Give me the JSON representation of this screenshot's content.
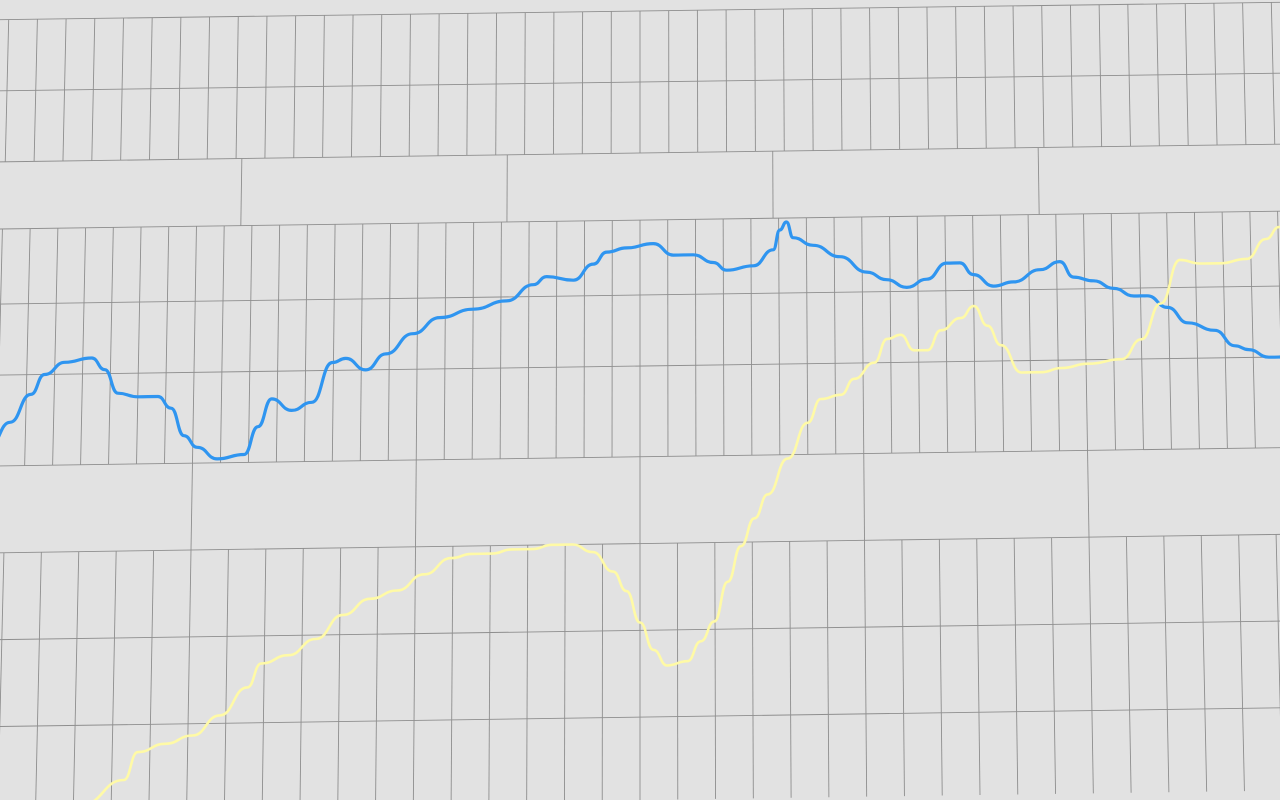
{
  "chart_data": {
    "type": "line",
    "title": "",
    "xlabel": "",
    "ylabel": "",
    "grid": true,
    "legend": "none",
    "background": "#e2e2e2",
    "grid_color": "#8e8e8e",
    "x_range": [
      0,
      100
    ],
    "y_range": [
      0,
      100
    ],
    "series": [
      {
        "color": "#2f95f0",
        "points": [
          [
            0,
            47
          ],
          [
            1.5,
            46
          ],
          [
            3,
            49
          ],
          [
            4.5,
            52.5
          ],
          [
            5.5,
            55
          ],
          [
            7,
            56.5
          ],
          [
            9,
            57
          ],
          [
            10,
            55.5
          ],
          [
            11,
            52.5
          ],
          [
            12.5,
            52
          ],
          [
            14,
            52
          ],
          [
            15,
            50.5
          ],
          [
            16,
            47
          ],
          [
            17,
            45.5
          ],
          [
            18.5,
            44
          ],
          [
            20.5,
            44.5
          ],
          [
            21.5,
            48
          ],
          [
            22.5,
            51.5
          ],
          [
            24,
            50
          ],
          [
            25.5,
            51
          ],
          [
            27,
            56
          ],
          [
            28,
            56.5
          ],
          [
            29.5,
            55
          ],
          [
            31,
            57
          ],
          [
            33,
            59.5
          ],
          [
            35,
            61.5
          ],
          [
            37.5,
            62.5
          ],
          [
            40,
            63.5
          ],
          [
            42,
            65.5
          ],
          [
            43,
            66.5
          ],
          [
            45,
            66
          ],
          [
            46.5,
            68
          ],
          [
            47.5,
            69.5
          ],
          [
            49,
            70
          ],
          [
            51,
            70.5
          ],
          [
            52.5,
            69
          ],
          [
            54,
            69
          ],
          [
            55.5,
            68
          ],
          [
            56.5,
            67
          ],
          [
            58.5,
            67.5
          ],
          [
            60,
            69.5
          ],
          [
            60.5,
            72
          ],
          [
            61,
            73
          ],
          [
            61.5,
            71
          ],
          [
            63,
            70
          ],
          [
            65,
            68.5
          ],
          [
            67,
            66.5
          ],
          [
            68.5,
            65.5
          ],
          [
            70,
            64.5
          ],
          [
            71.5,
            65.5
          ],
          [
            73,
            67.5
          ],
          [
            74,
            67.5
          ],
          [
            75,
            66
          ],
          [
            76.5,
            64.5
          ],
          [
            78,
            65
          ],
          [
            80,
            66.5
          ],
          [
            81.5,
            67.5
          ],
          [
            82.5,
            65.5
          ],
          [
            84,
            65
          ],
          [
            85.5,
            64
          ],
          [
            87,
            63
          ],
          [
            88,
            63
          ],
          [
            89.5,
            61.5
          ],
          [
            91,
            59.5
          ],
          [
            93,
            58.5
          ],
          [
            94.5,
            56.5
          ],
          [
            95.5,
            56
          ],
          [
            97,
            55
          ],
          [
            98.5,
            55
          ],
          [
            99,
            55
          ]
        ]
      },
      {
        "color": "#fffaa6",
        "points": [
          [
            4,
            0
          ],
          [
            9,
            0.5
          ],
          [
            12,
            3.5
          ],
          [
            13,
            7
          ],
          [
            15,
            8
          ],
          [
            17,
            9
          ],
          [
            19,
            11.5
          ],
          [
            21,
            15
          ],
          [
            22,
            18
          ],
          [
            24,
            19
          ],
          [
            26,
            21
          ],
          [
            28,
            24
          ],
          [
            30,
            26
          ],
          [
            32,
            27
          ],
          [
            34,
            29
          ],
          [
            36,
            31
          ],
          [
            37.5,
            31.5
          ],
          [
            39,
            31.5
          ],
          [
            40.5,
            32
          ],
          [
            42,
            32
          ],
          [
            43.5,
            32.5
          ],
          [
            45,
            32.5
          ],
          [
            46.5,
            31.5
          ],
          [
            48,
            29
          ],
          [
            49,
            26.5
          ],
          [
            50,
            22.5
          ],
          [
            51,
            19
          ],
          [
            52,
            17
          ],
          [
            53.5,
            17.5
          ],
          [
            54.5,
            20
          ],
          [
            55.5,
            22.5
          ],
          [
            56.5,
            27.5
          ],
          [
            57.5,
            32
          ],
          [
            58.5,
            35.5
          ],
          [
            59.5,
            38.5
          ],
          [
            61,
            43
          ],
          [
            62.5,
            47.5
          ],
          [
            63.5,
            50.5
          ],
          [
            65,
            51
          ],
          [
            66,
            53
          ],
          [
            67.5,
            55
          ],
          [
            68.5,
            58
          ],
          [
            69.5,
            58.5
          ],
          [
            70.5,
            56.5
          ],
          [
            71.5,
            56.5
          ],
          [
            72.5,
            59
          ],
          [
            74,
            60.5
          ],
          [
            75,
            62
          ],
          [
            76,
            59.5
          ],
          [
            77,
            57
          ],
          [
            78.5,
            53.5
          ],
          [
            80,
            53.5
          ],
          [
            81.5,
            54
          ],
          [
            83.5,
            54.5
          ],
          [
            86,
            55
          ],
          [
            87.5,
            57.5
          ],
          [
            89,
            62
          ],
          [
            90.5,
            67.5
          ],
          [
            92,
            67
          ],
          [
            93.5,
            67
          ],
          [
            95.5,
            67.5
          ],
          [
            97,
            70
          ],
          [
            98,
            71.5
          ],
          [
            99,
            72.5
          ]
        ]
      }
    ]
  }
}
